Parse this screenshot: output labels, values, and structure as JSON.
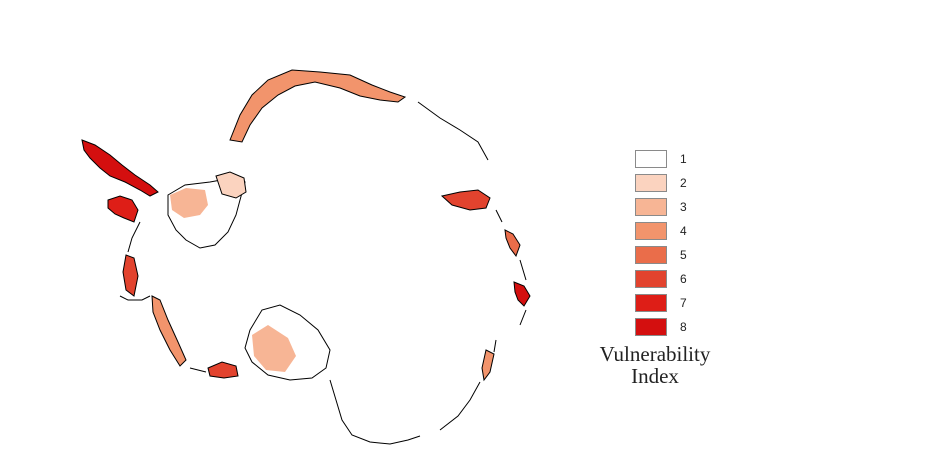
{
  "legend": {
    "title_line1": "Vulnerability",
    "title_line2": "Index",
    "classes": [
      {
        "label": "1",
        "color": "#ffffff"
      },
      {
        "label": "2",
        "color": "#fbd3bf"
      },
      {
        "label": "3",
        "color": "#f7b595"
      },
      {
        "label": "4",
        "color": "#f2946c"
      },
      {
        "label": "5",
        "color": "#ea6d4a"
      },
      {
        "label": "6",
        "color": "#e2432e"
      },
      {
        "label": "7",
        "color": "#de1e17"
      },
      {
        "label": "8",
        "color": "#d40f0f"
      }
    ]
  }
}
